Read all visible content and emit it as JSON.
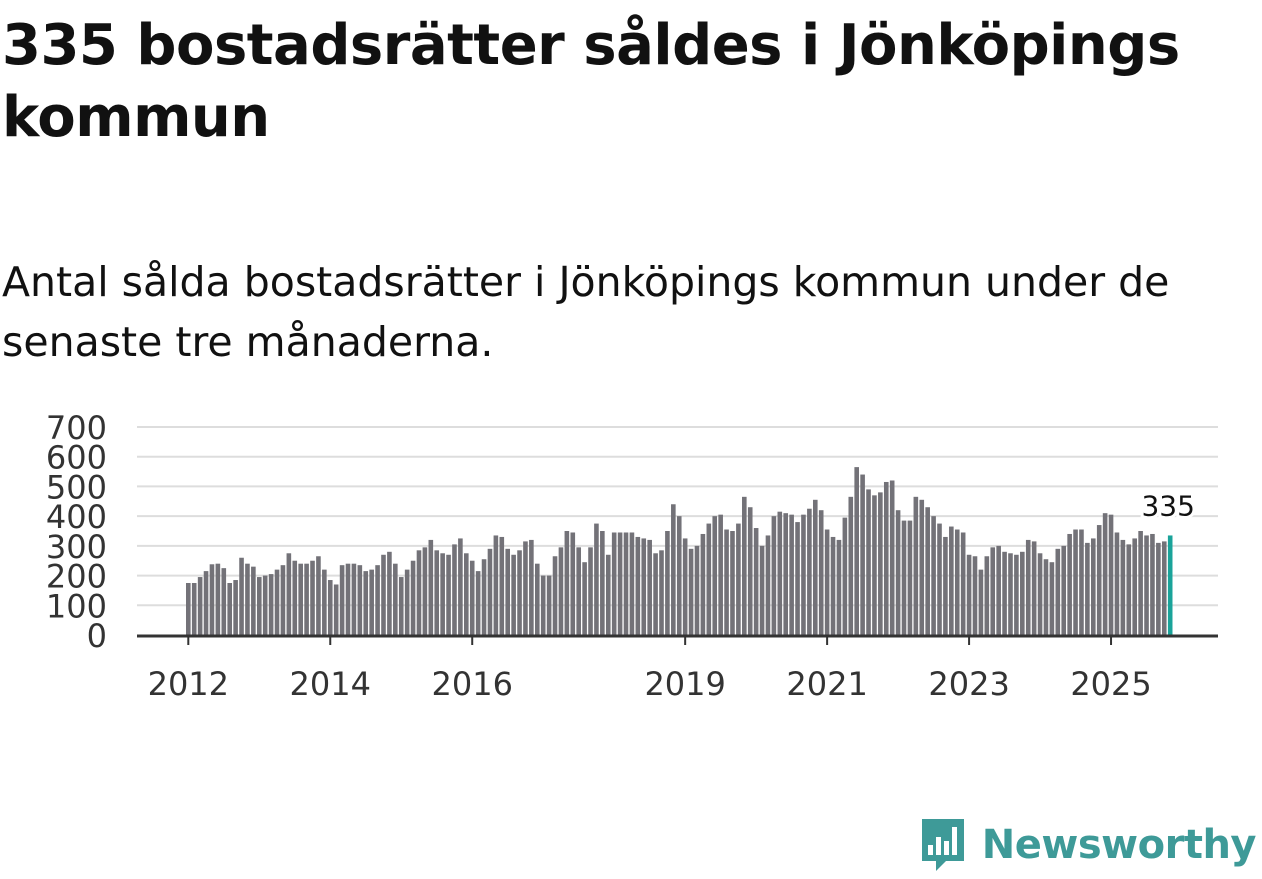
{
  "header": {
    "title": "335 bostadsrätter såldes i Jönköpings kommun",
    "subtitle": "Antal sålda bostadsrätter i Jönköpings kommun under de senaste tre månaderna."
  },
  "brand": {
    "name": "Newsworthy",
    "color": "#3e9a98",
    "icon": "newsworthy-logo-icon"
  },
  "colors": {
    "bar": "#737278",
    "highlight": "#1aa39a",
    "grid": "#dddddd",
    "axis": "#333333"
  },
  "chart_data": {
    "type": "bar",
    "title": "Antal sålda bostadsrätter i Jönköpings kommun under de senaste tre månaderna.",
    "xlabel": "",
    "ylabel": "",
    "ylim": [
      0,
      700
    ],
    "y_ticks": [
      0,
      100,
      200,
      300,
      400,
      500,
      600,
      700
    ],
    "x_tick_labels": [
      {
        "label": "2012",
        "index": 0
      },
      {
        "label": "2014",
        "index": 24
      },
      {
        "label": "2016",
        "index": 48
      },
      {
        "label": "2019",
        "index": 84
      },
      {
        "label": "2021",
        "index": 108
      },
      {
        "label": "2023",
        "index": 132
      },
      {
        "label": "2025",
        "index": 156
      }
    ],
    "grid": true,
    "highlight_last": true,
    "last_value_label": "335",
    "values": [
      175,
      175,
      195,
      215,
      238,
      240,
      225,
      175,
      185,
      260,
      240,
      230,
      195,
      200,
      205,
      220,
      235,
      275,
      250,
      240,
      240,
      250,
      265,
      220,
      185,
      170,
      235,
      240,
      240,
      235,
      215,
      220,
      235,
      270,
      280,
      240,
      195,
      220,
      250,
      285,
      295,
      320,
      285,
      275,
      270,
      305,
      325,
      275,
      250,
      215,
      255,
      290,
      335,
      330,
      290,
      270,
      285,
      315,
      320,
      240,
      200,
      200,
      265,
      295,
      350,
      345,
      295,
      245,
      295,
      375,
      350,
      270,
      345,
      345,
      345,
      345,
      330,
      325,
      320,
      275,
      285,
      350,
      440,
      400,
      325,
      290,
      300,
      340,
      375,
      400,
      405,
      355,
      350,
      375,
      465,
      430,
      360,
      300,
      335,
      400,
      415,
      410,
      405,
      380,
      405,
      425,
      455,
      420,
      355,
      330,
      320,
      395,
      465,
      565,
      540,
      490,
      470,
      480,
      515,
      520,
      420,
      385,
      385,
      465,
      455,
      430,
      400,
      375,
      330,
      365,
      355,
      345,
      270,
      265,
      220,
      265,
      295,
      300,
      280,
      275,
      270,
      280,
      320,
      315,
      275,
      255,
      245,
      290,
      300,
      340,
      355,
      355,
      310,
      325,
      370,
      410,
      405,
      345,
      320,
      305,
      325,
      350,
      335,
      340,
      310,
      315,
      335
    ]
  }
}
